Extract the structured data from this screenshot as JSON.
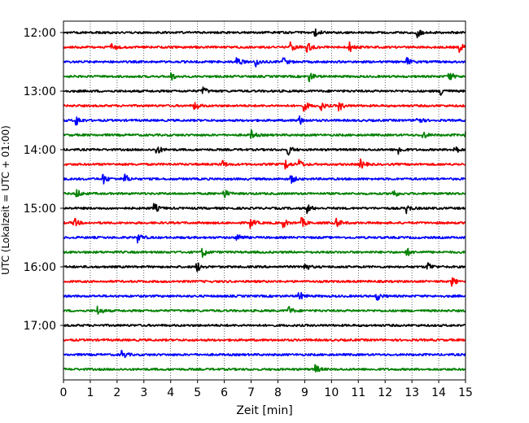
{
  "chart_data": {
    "type": "line",
    "title": "",
    "xlabel": "Zeit  [min]",
    "ylabel": "UTC (Lokalzeit = UTC + 01:00)",
    "xlim": [
      0,
      15
    ],
    "x_ticks": [
      0,
      1,
      2,
      3,
      4,
      5,
      6,
      7,
      8,
      9,
      10,
      11,
      12,
      13,
      14,
      15
    ],
    "x_tick_labels": [
      "0",
      "1",
      "2",
      "3",
      "4",
      "5",
      "6",
      "7",
      "8",
      "9",
      "10",
      "11",
      "12",
      "13",
      "14",
      "15"
    ],
    "y_tick_labels": [
      "12:00",
      "13:00",
      "14:00",
      "15:00",
      "16:00",
      "17:00"
    ],
    "grid": "vertical dotted at each minute",
    "row_colors": [
      "#000000",
      "#ff0000",
      "#0000ff",
      "#008000"
    ],
    "traces": [
      {
        "start": "12:00",
        "color": "#000000",
        "events_min": [
          9.4,
          13.2
        ]
      },
      {
        "start": "12:15",
        "color": "#ff0000",
        "events_min": [
          1.8,
          8.5,
          9.1,
          10.7,
          14.8
        ]
      },
      {
        "start": "12:30",
        "color": "#0000ff",
        "events_min": [
          6.5,
          7.2,
          8.2,
          12.8
        ]
      },
      {
        "start": "12:45",
        "color": "#008000",
        "events_min": [
          4.0,
          9.2,
          14.4
        ]
      },
      {
        "start": "13:00",
        "color": "#000000",
        "events_min": [
          5.2,
          14.1
        ]
      },
      {
        "start": "13:15",
        "color": "#ff0000",
        "events_min": [
          4.9,
          9.0,
          9.6,
          10.3
        ]
      },
      {
        "start": "13:30",
        "color": "#0000ff",
        "events_min": [
          0.5,
          8.8,
          13.2
        ]
      },
      {
        "start": "13:45",
        "color": "#008000",
        "events_min": [
          7.0,
          13.4,
          15.0
        ]
      },
      {
        "start": "14:00",
        "color": "#000000",
        "events_min": [
          3.5,
          8.4,
          12.5,
          14.6
        ]
      },
      {
        "start": "14:15",
        "color": "#ff0000",
        "events_min": [
          5.9,
          8.3,
          8.8,
          11.1
        ]
      },
      {
        "start": "14:30",
        "color": "#0000ff",
        "events_min": [
          1.5,
          2.3,
          8.5
        ]
      },
      {
        "start": "14:45",
        "color": "#008000",
        "events_min": [
          0.5,
          6.0,
          12.3
        ]
      },
      {
        "start": "15:00",
        "color": "#000000",
        "events_min": [
          3.4,
          9.1,
          12.8
        ]
      },
      {
        "start": "15:15",
        "color": "#ff0000",
        "events_min": [
          0.4,
          7.0,
          8.2,
          8.9,
          10.2
        ]
      },
      {
        "start": "15:30",
        "color": "#0000ff",
        "events_min": [
          6.5,
          2.8
        ]
      },
      {
        "start": "15:45",
        "color": "#008000",
        "events_min": [
          5.2,
          12.8
        ]
      },
      {
        "start": "16:00",
        "color": "#000000",
        "events_min": [
          5.0,
          9.0,
          13.6
        ]
      },
      {
        "start": "16:15",
        "color": "#ff0000",
        "events_min": [
          14.5
        ]
      },
      {
        "start": "16:30",
        "color": "#0000ff",
        "events_min": [
          8.8,
          11.7
        ]
      },
      {
        "start": "16:45",
        "color": "#008000",
        "events_min": [
          1.3,
          8.4
        ]
      },
      {
        "start": "17:00",
        "color": "#000000",
        "events_min": []
      },
      {
        "start": "17:15",
        "color": "#ff0000",
        "events_min": []
      },
      {
        "start": "17:30",
        "color": "#0000ff",
        "events_min": [
          2.2
        ]
      },
      {
        "start": "17:45",
        "color": "#008000",
        "events_min": [
          9.4
        ]
      }
    ]
  }
}
